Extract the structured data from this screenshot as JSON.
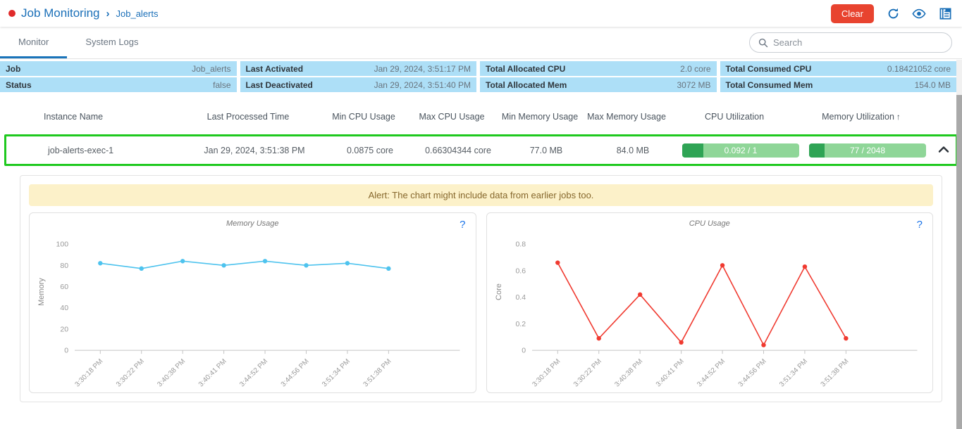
{
  "header": {
    "breadcrumb": {
      "title": "Job Monitoring",
      "separator": "›",
      "sub": "Job_alerts"
    },
    "actions": {
      "clear_label": "Clear"
    }
  },
  "tabs": [
    {
      "label": "Monitor",
      "active": true
    },
    {
      "label": "System Logs",
      "active": false
    }
  ],
  "search": {
    "placeholder": "Search"
  },
  "info": {
    "cells": [
      {
        "label": "Job",
        "value": "Job_alerts"
      },
      {
        "label": "Last Activated",
        "value": "Jan 29, 2024, 3:51:17 PM"
      },
      {
        "label": "Total Allocated CPU",
        "value": "2.0 core"
      },
      {
        "label": "Total Consumed CPU",
        "value": "0.18421052 core"
      },
      {
        "label": "Status",
        "value": "false"
      },
      {
        "label": "Last Deactivated",
        "value": "Jan 29, 2024, 3:51:40 PM"
      },
      {
        "label": "Total Allocated Mem",
        "value": "3072 MB"
      },
      {
        "label": "Total Consumed Mem",
        "value": "154.0 MB"
      }
    ]
  },
  "table": {
    "columns": [
      "Instance Name",
      "Last Processed Time",
      "Min CPU Usage",
      "Max CPU Usage",
      "Min Memory Usage",
      "Max Memory Usage",
      "CPU Utilization",
      "Memory Utilization"
    ],
    "sort_arrow": "↑",
    "row": {
      "instance_name": "job-alerts-exec-1",
      "last_processed": "Jan 29, 2024, 3:51:38 PM",
      "min_cpu": "0.0875 core",
      "max_cpu": "0.66304344 core",
      "min_mem": "77.0 MB",
      "max_mem": "84.0 MB",
      "cpu_util": {
        "label": "0.092 / 1",
        "fill_pct": 18
      },
      "mem_util": {
        "label": "77 / 2048",
        "fill_pct": 13
      }
    }
  },
  "alert": {
    "text": "Alert: The chart might include data from earlier jobs too."
  },
  "charts": {
    "help_label": "?"
  },
  "chart_data": [
    {
      "type": "line",
      "title": "Memory Usage",
      "ylabel": "Memory",
      "color": "#4ec3ee",
      "x": [
        "3:30:18 PM",
        "3:30:22 PM",
        "3:40:38 PM",
        "3:40:41 PM",
        "3:44:52 PM",
        "3:44:56 PM",
        "3:51:34 PM",
        "3:51:38 PM"
      ],
      "values": [
        82,
        77,
        84,
        80,
        84,
        80,
        82,
        77
      ],
      "ylim": [
        0,
        110
      ],
      "yticks": [
        0,
        20,
        40,
        60,
        80,
        100
      ],
      "grid": false,
      "legend": "none"
    },
    {
      "type": "line",
      "title": "CPU Usage",
      "ylabel": "Core",
      "color": "#f03a30",
      "x": [
        "3:30:18 PM",
        "3:30:22 PM",
        "3:40:38 PM",
        "3:40:41 PM",
        "3:44:52 PM",
        "3:44:56 PM",
        "3:51:34 PM",
        "3:51:38 PM"
      ],
      "values": [
        0.66,
        0.09,
        0.42,
        0.06,
        0.64,
        0.04,
        0.63,
        0.09
      ],
      "ylim": [
        0,
        0.88
      ],
      "yticks": [
        0,
        0.2,
        0.4,
        0.6,
        0.8
      ],
      "grid": false,
      "legend": "none"
    }
  ],
  "colors": {
    "accent_blue": "#1a6fb8",
    "clear_red": "#e8432f",
    "row_highlight_green": "#1fc91f",
    "bar_track_green": "#8fd698",
    "bar_fill_green": "#2fa455",
    "info_row_blue": "#addff7",
    "alert_bg": "#fcf1c9",
    "memory_line": "#4ec3ee",
    "cpu_line": "#f03a30"
  }
}
